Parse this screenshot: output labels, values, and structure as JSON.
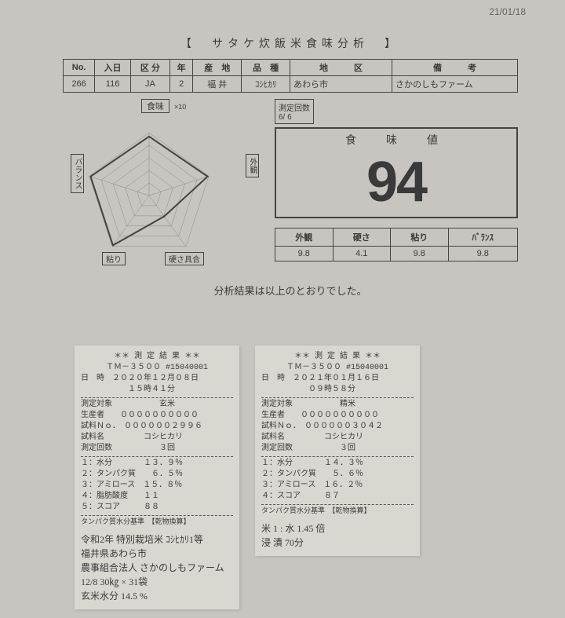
{
  "page_date": "21/01/18",
  "title": "【　サタケ炊飯米食味分析　】",
  "info_headers": [
    "No.",
    "入日",
    "区 分",
    "年",
    "産　地",
    "品　種",
    "地　　　区",
    "備　　　考"
  ],
  "info_values": [
    "266",
    "116",
    "JA",
    "2",
    "福 井",
    "ｺｼﾋｶﾘ",
    "あわら市",
    "さかのしもファーム"
  ],
  "radar": {
    "title": "食味",
    "multiplier": "×10",
    "axes": [
      "食味",
      "外観",
      "硬さ具合",
      "粘り",
      "バランス"
    ],
    "values": [
      9.4,
      9.8,
      4.1,
      9.8,
      9.8
    ],
    "max": 10,
    "line_color": "#444444",
    "fill_color": "none"
  },
  "meas_count_label": "測定回数",
  "meas_count_val": "6/ 6",
  "score_label": "食　味　値",
  "score_value": "94",
  "sub_headers": [
    "外観",
    "硬さ",
    "粘り",
    "ﾊﾞﾗﾝｽ"
  ],
  "sub_values": [
    "9.8",
    "4.1",
    "9.8",
    "9.8"
  ],
  "result_line": "分析結果は以上のとおりでした。",
  "receipt1": {
    "header": "＊＊ 測 定 結 果 ＊＊",
    "model": "ＴＭ－３５００ #15040001",
    "dt_label": "日　時",
    "dt1": "２０２０年１２月０８日",
    "dt2": "１５時４１分",
    "target_label": "測定対象",
    "target": "玄米",
    "producer_label": "生産者",
    "producer": "００００００００００",
    "sample_label": "試料Ｎｏ．",
    "sample": "００００００２９９６",
    "name_label": "試料名",
    "name": "コシヒカリ",
    "count_label": "測定回数",
    "count": "３回",
    "r1": "１：水分　　　　１３．９％",
    "r2": "２：タンパク質　　６．５％",
    "r3": "３：アミロース　１５．８％",
    "r4": "４：脂肪酸度　　１１",
    "r5": "５：スコア　　　８８",
    "basis": "タンパク質水分基準　【乾物換算】",
    "notes": "令和2年 特別栽培米 ｺｼﾋｶﾘ1等\n福井県あわら市\n農事組合法人 さかのしもファーム\n 12/8   30㎏ × 31袋\n 玄米水分  14.5 %"
  },
  "receipt2": {
    "header": "＊＊ 測 定 結 果 ＊＊",
    "model": "ＴＭ－３５００ #15040001",
    "dt_label": "日　時",
    "dt1": "２０２１年０１月１６日",
    "dt2": "０９時５８分",
    "target_label": "測定対象",
    "target": "精米",
    "producer_label": "生産者",
    "producer": "００００００００００",
    "sample_label": "試料Ｎｏ．",
    "sample": "００００００３０４２",
    "name_label": "試料名",
    "name": "コシヒカリ",
    "count_label": "測定回数",
    "count": "３回",
    "r1": "１：水分　　　　１４．３％",
    "r2": "２：タンパク質　　５．６％",
    "r3": "３：アミロース　１６．２％",
    "r4": "４：スコア　　　８７",
    "basis": "タンパク質水分基準　【乾物換算】",
    "notes": " 米 1 : 水 1.45 倍\n  浸 漬   70分"
  }
}
